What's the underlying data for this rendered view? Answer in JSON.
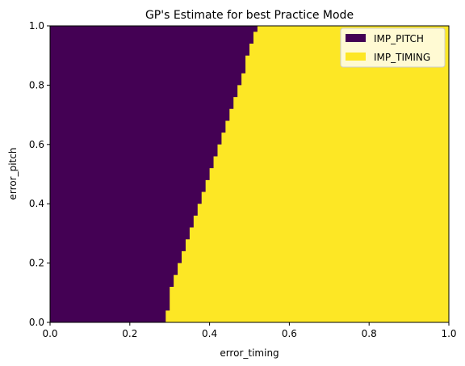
{
  "chart_data": {
    "type": "heatmap",
    "title": "GP's Estimate for best Practice Mode",
    "xlabel": "error_timing",
    "ylabel": "error_pitch",
    "xlim": [
      0.0,
      1.0
    ],
    "ylim": [
      0.0,
      1.0
    ],
    "xticks": [
      "0.0",
      "0.2",
      "0.4",
      "0.6",
      "0.8",
      "1.0"
    ],
    "yticks": [
      "0.0",
      "0.2",
      "0.4",
      "0.6",
      "0.8",
      "1.0"
    ],
    "grid": false,
    "legend_position": "top-right",
    "classes": [
      {
        "name": "IMP_PITCH",
        "color": "#440154"
      },
      {
        "name": "IMP_TIMING",
        "color": "#fde725"
      }
    ],
    "boundary": {
      "description_x_at_y": "error_timing value where class switches from IMP_PITCH to IMP_TIMING",
      "y": [
        0.0,
        0.02,
        0.04,
        0.06,
        0.08,
        0.1,
        0.12,
        0.14,
        0.16,
        0.18,
        0.2,
        0.22,
        0.24,
        0.26,
        0.28,
        0.3,
        0.32,
        0.34,
        0.36,
        0.38,
        0.4,
        0.42,
        0.44,
        0.46,
        0.48,
        0.5,
        0.52,
        0.54,
        0.56,
        0.58,
        0.6,
        0.62,
        0.64,
        0.66,
        0.68,
        0.7,
        0.72,
        0.74,
        0.76,
        0.78,
        0.8,
        0.82,
        0.84,
        0.86,
        0.88,
        0.9,
        0.92,
        0.94,
        0.96,
        0.98,
        1.0
      ],
      "x": [
        0.29,
        0.29,
        0.3,
        0.3,
        0.3,
        0.3,
        0.31,
        0.31,
        0.32,
        0.32,
        0.33,
        0.33,
        0.34,
        0.34,
        0.35,
        0.35,
        0.36,
        0.36,
        0.37,
        0.37,
        0.38,
        0.38,
        0.39,
        0.39,
        0.4,
        0.4,
        0.41,
        0.41,
        0.42,
        0.42,
        0.43,
        0.43,
        0.44,
        0.44,
        0.45,
        0.45,
        0.46,
        0.46,
        0.47,
        0.47,
        0.48,
        0.48,
        0.49,
        0.49,
        0.49,
        0.5,
        0.5,
        0.51,
        0.51,
        0.52,
        0.52
      ]
    }
  }
}
